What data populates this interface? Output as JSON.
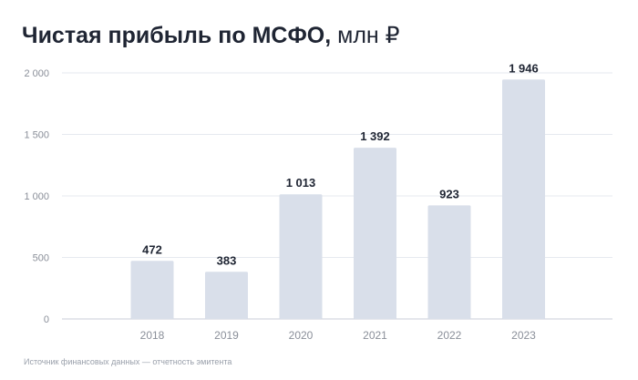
{
  "title": {
    "main": "Чистая прибыль по МСФО,",
    "unit": "млн ₽"
  },
  "source_note": "Источник финансовых данных — отчетность эмитента",
  "colors": {
    "bar": "#d9dfea",
    "gridline": "#e6e9ef",
    "baseline": "#c9ced8",
    "tick_label": "#8a8f99",
    "data_label": "#1f2533"
  },
  "chart_data": {
    "type": "bar",
    "categories": [
      "2018",
      "2019",
      "2020",
      "2021",
      "2022",
      "2023"
    ],
    "values": [
      472,
      383,
      1013,
      1392,
      923,
      1946
    ],
    "value_labels": [
      "472",
      "383",
      "1 013",
      "1 392",
      "923",
      "1 946"
    ],
    "y_ticks": [
      0,
      500,
      1000,
      1500,
      2000
    ],
    "y_tick_labels": [
      "0",
      "500",
      "1 000",
      "1 500",
      "2 000"
    ],
    "ylim": [
      0,
      2000
    ],
    "grid": true,
    "legend": "none"
  }
}
